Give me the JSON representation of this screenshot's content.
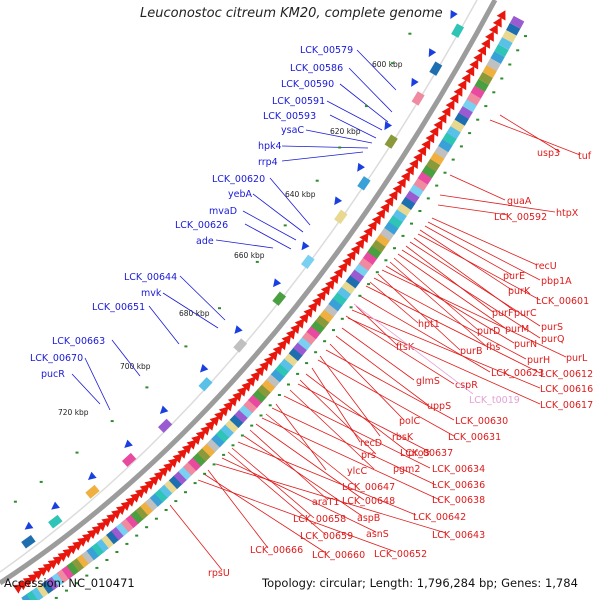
{
  "title": "Leuconostoc citreum KM20, complete genome",
  "footer": {
    "accession": "Accession: NC_010471",
    "summary": "Topology: circular; Length: 1,796,284 bp; Genes: 1,784"
  },
  "colors": {
    "ring": "#999999",
    "forward_gene": "#e8160c",
    "reverse_gene": "#1a3fe0",
    "left_label": "#1a1ad6",
    "right_label": "#e01b1b",
    "trna_label": "#e6a0d8",
    "dots": "#2e8b2e"
  },
  "kbp_marks": [
    "600 kbp",
    "620 kbp",
    "640 kbp",
    "660 kbp",
    "680 kbp",
    "700 kbp",
    "720 kbp"
  ],
  "left_labels": [
    "LCK_00579",
    "LCK_00586",
    "LCK_00590",
    "LCK_00591",
    "LCK_00593",
    "ysaC",
    "hpk4",
    "rrp4",
    "LCK_00620",
    "yebA",
    "mvaD",
    "LCK_00626",
    "ade",
    "LCK_00644",
    "mvk",
    "LCK_00651",
    "LCK_00663",
    "LCK_00670",
    "pucR"
  ],
  "right_labels": [
    "usp3",
    "tuf",
    "guaA",
    "htpX",
    "LCK_00592",
    "recU",
    "pbp1A",
    "purE",
    "purK",
    "LCK_00601",
    "purC",
    "purS",
    "purF",
    "purQ",
    "purM",
    "purD",
    "fhs",
    "purN",
    "purL",
    "purB",
    "purH",
    "hpt1",
    "LCK_00612",
    "ftsK",
    "LCK_00616",
    "LCK_00623",
    "cspR",
    "LCK_00617",
    "glmS",
    "uppS",
    "polC",
    "LCK_00630",
    "rbsK",
    "LCK_00631",
    "recD",
    "proS",
    "prs",
    "LCK_00637",
    "pgm2",
    "LCK_00634",
    "ylcC",
    "LCK_00636",
    "LCK_00647",
    "LCK_00638",
    "LCK_00648",
    "araT1",
    "aspB",
    "LCK_00642",
    "LCK_00658",
    "LCK_00659",
    "asnS",
    "LCK_00643",
    "LCK_00666",
    "LCK_00660",
    "LCK_00652",
    "rpsU"
  ],
  "trna_labels": [
    "LCK_t0019"
  ]
}
